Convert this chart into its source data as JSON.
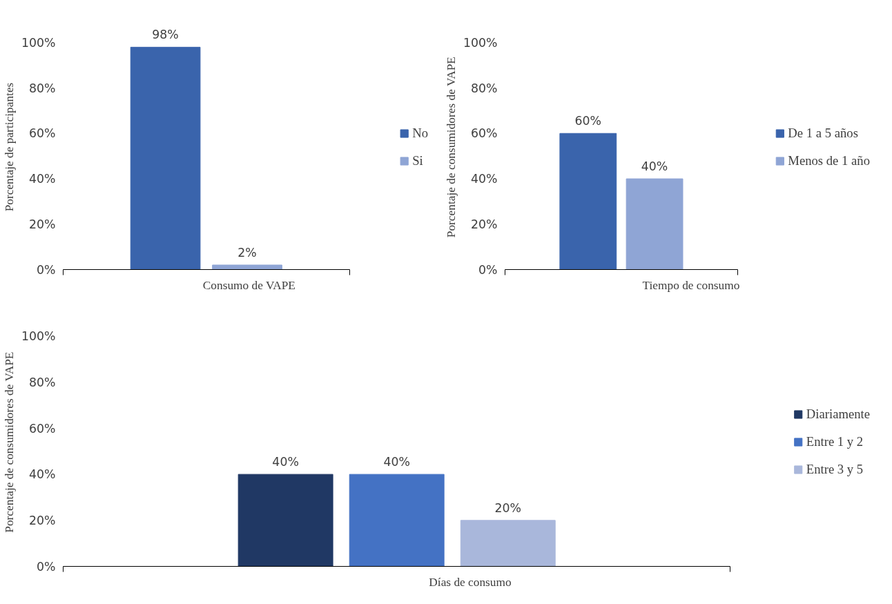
{
  "chart_data": [
    {
      "type": "bar",
      "xlabel": "Consumo de VAPE",
      "ylabel": "Porcentaje de participantes",
      "categories": [
        null
      ],
      "ylim": [
        0,
        100
      ],
      "yticks": [
        {
          "value": 0,
          "label": "0%"
        },
        {
          "value": 20,
          "label": "20%"
        },
        {
          "value": 40,
          "label": "40%"
        },
        {
          "value": 60,
          "label": "60%"
        },
        {
          "value": 80,
          "label": "80%"
        },
        {
          "value": 100,
          "label": "100%"
        }
      ],
      "grid": false,
      "legend": "right",
      "series": [
        {
          "name": "No",
          "color": "#3a64ac",
          "values": [
            98
          ],
          "value_labels": [
            "98%"
          ]
        },
        {
          "name": "Si",
          "color": "#8fa5d5",
          "values": [
            2
          ],
          "value_labels": [
            "2%"
          ]
        }
      ]
    },
    {
      "type": "bar",
      "xlabel": "Tiempo de consumo",
      "ylabel": "Porcentaje de consumidores de VAPE",
      "categories": [
        null
      ],
      "ylim": [
        0,
        100
      ],
      "yticks": [
        {
          "value": 0,
          "label": "0%"
        },
        {
          "value": 20,
          "label": "20%"
        },
        {
          "value": 40,
          "label": "40%"
        },
        {
          "value": 60,
          "label": "60%"
        },
        {
          "value": 80,
          "label": "80%"
        },
        {
          "value": 100,
          "label": "100%"
        }
      ],
      "grid": false,
      "legend": "right",
      "series": [
        {
          "name": "De 1 a 5 años",
          "color": "#3a64ac",
          "values": [
            60
          ],
          "value_labels": [
            "60%"
          ]
        },
        {
          "name": "Menos de 1 año",
          "color": "#8fa5d5",
          "values": [
            40
          ],
          "value_labels": [
            "40%"
          ]
        }
      ]
    },
    {
      "type": "bar",
      "xlabel": "Días de consumo",
      "ylabel": "Porcentaje de consumidores de VAPE",
      "categories": [
        null
      ],
      "ylim": [
        0,
        100
      ],
      "yticks": [
        {
          "value": 0,
          "label": "0%"
        },
        {
          "value": 20,
          "label": "20%"
        },
        {
          "value": 40,
          "label": "40%"
        },
        {
          "value": 60,
          "label": "60%"
        },
        {
          "value": 80,
          "label": "80%"
        },
        {
          "value": 100,
          "label": "100%"
        }
      ],
      "grid": false,
      "legend": "right",
      "series": [
        {
          "name": "Diariamente",
          "color": "#203864",
          "values": [
            40
          ],
          "value_labels": [
            "40%"
          ]
        },
        {
          "name": "Entre 1 y 2",
          "color": "#4472c4",
          "values": [
            40
          ],
          "value_labels": [
            "40%"
          ]
        },
        {
          "name": "Entre 3 y 5",
          "color": "#a9b7db",
          "values": [
            20
          ],
          "value_labels": [
            "20%"
          ]
        }
      ]
    }
  ]
}
